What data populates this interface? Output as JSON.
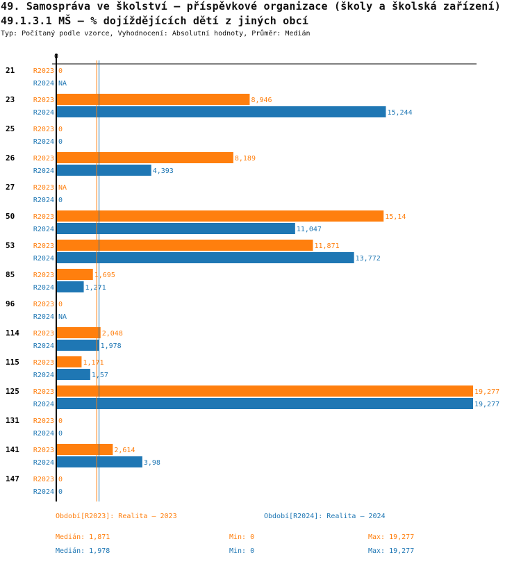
{
  "header": {
    "title": "49. Samospráva ve školství – příspěvkové organizace (školy a školská zařízení)",
    "subtitle_line": "49.1.3.1 MŠ – % dojíždějících dětí z jiných obcí",
    "info": "Typ: Počítaný podle vzorce, Vyhodnocení: Absolutní hodnoty, Průměr: Medián"
  },
  "colors": {
    "R2023": "#ff7f0e",
    "R2024": "#1f77b4",
    "axis": "#000000"
  },
  "chart_data": {
    "type": "bar",
    "orientation": "horizontal",
    "title": "49.1.3.1 MŠ – % dojíždějících dětí z jiných obcí",
    "xlabel": "",
    "ylabel": "",
    "x_tick_labels": [
      "0"
    ],
    "xlim": [
      0,
      19.277
    ],
    "grid": false,
    "categories": [
      "21",
      "23",
      "25",
      "26",
      "27",
      "50",
      "53",
      "85",
      "96",
      "114",
      "115",
      "125",
      "131",
      "141",
      "147"
    ],
    "series": [
      {
        "name": "R2023",
        "values": [
          0,
          8.946,
          0,
          8.189,
          null,
          15.14,
          11.871,
          1.695,
          0,
          2.048,
          1.171,
          19.277,
          0,
          2.614,
          0
        ],
        "labels": [
          "0",
          "8,946",
          "0",
          "8,189",
          "NA",
          "15,14",
          "11,871",
          "1,695",
          "0",
          "2,048",
          "1,171",
          "19,277",
          "0",
          "2,614",
          "0"
        ],
        "median": 1.871
      },
      {
        "name": "R2024",
        "values": [
          null,
          15.244,
          0,
          4.393,
          0,
          11.047,
          13.772,
          1.271,
          null,
          1.978,
          1.57,
          19.277,
          0,
          3.98,
          0
        ],
        "labels": [
          "NA",
          "15,244",
          "0",
          "4,393",
          "0",
          "11,047",
          "13,772",
          "1,271",
          "NA",
          "1,978",
          "1,57",
          "19,277",
          "0",
          "3,98",
          "0"
        ],
        "median": 1.978
      }
    ],
    "legend": [
      {
        "series": "R2023",
        "text": "Období[R2023]: Realita – 2023"
      },
      {
        "series": "R2024",
        "text": "Období[R2024]: Realita – 2024"
      }
    ],
    "legend_placement": "bottom"
  },
  "stats": {
    "R2023": {
      "median": "Medián: 1,871",
      "min": "Min: 0",
      "max": "Max: 19,277"
    },
    "R2024": {
      "median": "Medián: 1,978",
      "min": "Min: 0",
      "max": "Max: 19,277"
    }
  }
}
